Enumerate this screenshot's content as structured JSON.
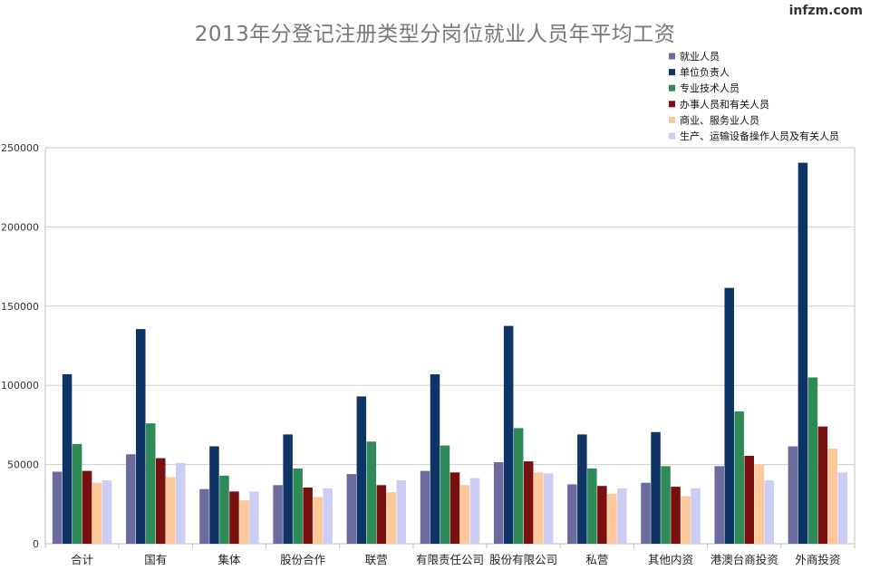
{
  "watermark": "infzm.com",
  "chart_data": {
    "type": "bar",
    "title": "2013年分登记注册类型分岗位就业人员年平均工资",
    "xlabel": "",
    "ylabel": "",
    "ylim": [
      0,
      250000
    ],
    "yticks": [
      0,
      50000,
      100000,
      150000,
      200000,
      250000
    ],
    "grid": true,
    "legend_position": "top-right",
    "categories": [
      "合计",
      "国有",
      "集体",
      "股份合作",
      "联营",
      "有限责任公司",
      "股份有限公司",
      "私营",
      "其他内资",
      "港澳台商投资",
      "外商投资"
    ],
    "series": [
      {
        "name": "就业人员",
        "color": "#6b6b9e",
        "values": [
          45500,
          56500,
          34500,
          37000,
          44000,
          46000,
          51500,
          37500,
          38500,
          49000,
          61500
        ]
      },
      {
        "name": "单位负责人",
        "color": "#0d3464",
        "values": [
          107000,
          135500,
          61500,
          69000,
          93000,
          107000,
          137500,
          69000,
          70500,
          161500,
          240500
        ]
      },
      {
        "name": "专业技术人员",
        "color": "#2e8b57",
        "values": [
          63000,
          76000,
          43000,
          47500,
          64500,
          62000,
          73000,
          47500,
          49000,
          83500,
          105000
        ]
      },
      {
        "name": "办事人员和有关人员",
        "color": "#7a0f0f",
        "values": [
          46000,
          54000,
          33000,
          35500,
          37000,
          45000,
          52000,
          36500,
          36000,
          55500,
          74000
        ]
      },
      {
        "name": "商业、服务业人员",
        "color": "#fcc799",
        "values": [
          38500,
          42000,
          27500,
          29500,
          32500,
          37000,
          45000,
          31500,
          30000,
          50000,
          60000
        ]
      },
      {
        "name": "生产、运输设备操作人员及有关人员",
        "color": "#cccdf5",
        "values": [
          40000,
          51000,
          33000,
          35000,
          40000,
          41500,
          44500,
          35000,
          35000,
          40000,
          45000
        ]
      }
    ]
  }
}
